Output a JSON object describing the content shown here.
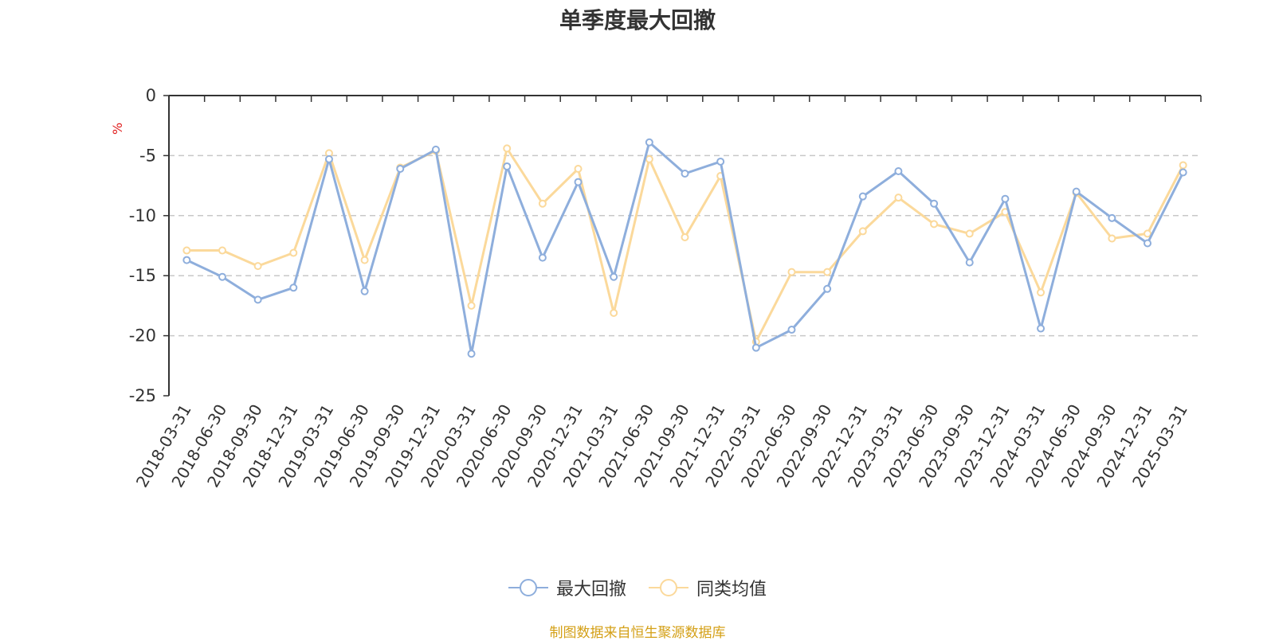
{
  "chart_data": {
    "type": "line",
    "title": "单季度最大回撤",
    "ylabel": "%",
    "ylim": [
      -25,
      0
    ],
    "yticks": [
      0,
      -5,
      -10,
      -15,
      -20,
      -25
    ],
    "categories": [
      "2018-03-31",
      "2018-06-30",
      "2018-09-30",
      "2018-12-31",
      "2019-03-31",
      "2019-06-30",
      "2019-09-30",
      "2019-12-31",
      "2020-03-31",
      "2020-06-30",
      "2020-09-30",
      "2020-12-31",
      "2021-03-31",
      "2021-06-30",
      "2021-09-30",
      "2021-12-31",
      "2022-03-31",
      "2022-06-30",
      "2022-09-30",
      "2022-12-31",
      "2023-03-31",
      "2023-06-30",
      "2023-09-30",
      "2023-12-31",
      "2024-03-31",
      "2024-06-30",
      "2024-09-30",
      "2024-12-31",
      "2025-03-31"
    ],
    "series": [
      {
        "name": "最大回撤",
        "color": "#8eaedc",
        "values": [
          -13.7,
          -15.1,
          -17.0,
          -16.0,
          -5.3,
          -16.3,
          -6.1,
          -4.5,
          -21.5,
          -5.9,
          -13.5,
          -7.2,
          -15.1,
          -3.9,
          -6.5,
          -5.5,
          -21.0,
          -19.5,
          -16.1,
          -8.4,
          -6.3,
          -9.0,
          -13.9,
          -8.6,
          -19.4,
          -8.0,
          -10.2,
          -12.3,
          -6.4
        ]
      },
      {
        "name": "同类均值",
        "color": "#fbd99b",
        "values": [
          -12.9,
          -12.9,
          -14.2,
          -13.1,
          -4.8,
          -13.7,
          -6.0,
          -4.6,
          -17.5,
          -4.4,
          -9.0,
          -6.1,
          -18.1,
          -5.3,
          -11.8,
          -6.7,
          -20.5,
          -14.7,
          -14.7,
          -11.3,
          -8.5,
          -10.7,
          -11.5,
          -9.7,
          -16.4,
          -8.1,
          -11.9,
          -11.5,
          -5.8
        ]
      }
    ],
    "source": "制图数据来自恒生聚源数据库"
  }
}
